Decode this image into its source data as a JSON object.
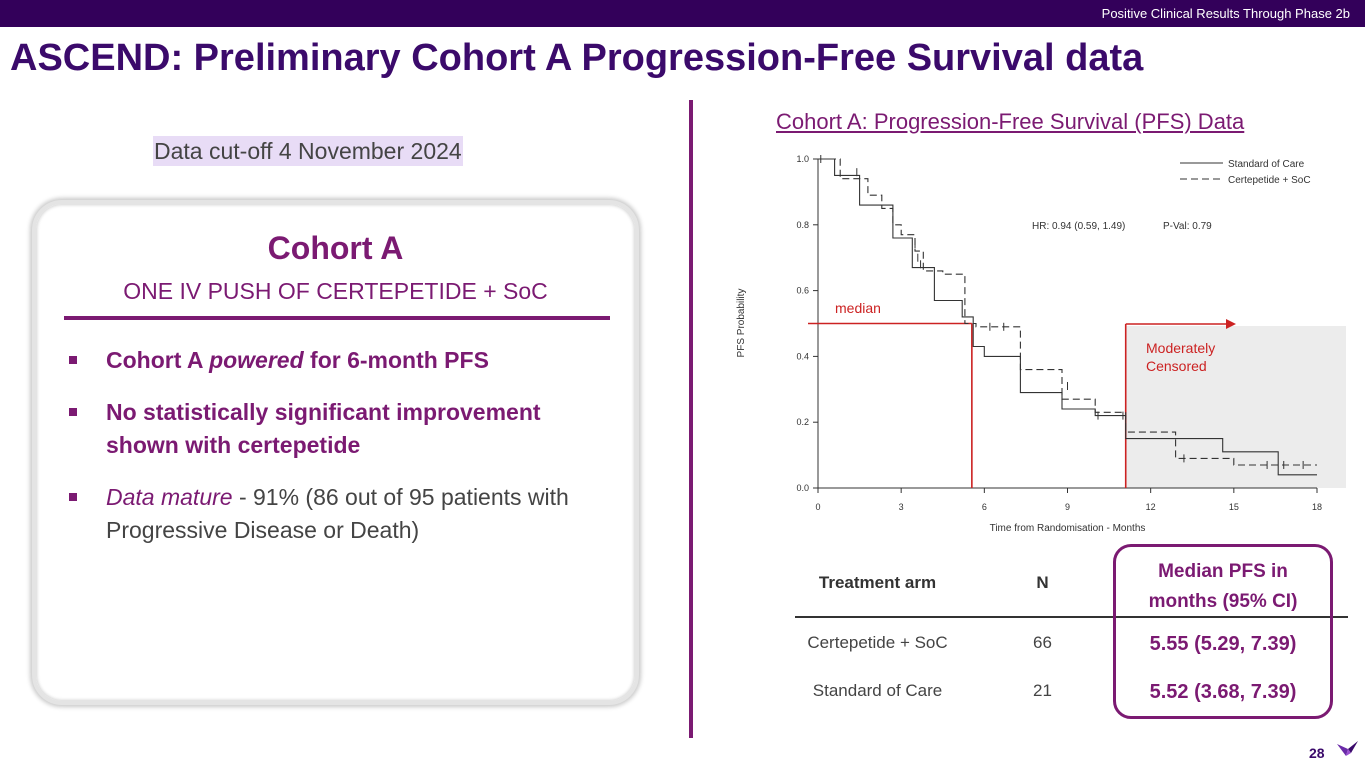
{
  "header": {
    "section": "Positive Clinical Results Through Phase 2b"
  },
  "title": "ASCEND: Preliminary Cohort A Progression-Free Survival data",
  "cutoff": "Data cut-off 4 November 2024",
  "card": {
    "title": "Cohort A",
    "subtitle": "ONE IV PUSH OF CERTEPETIDE + SoC",
    "bullets": [
      {
        "a": "Cohort A ",
        "b": "powered",
        "c": " for 6-month PFS"
      },
      {
        "a": "No statistically significant improvement shown with certepetide"
      },
      {
        "a": "Data mature",
        "b": " - 91% (86 out of 95 patients with Progressive Disease or Death)"
      }
    ]
  },
  "chart_title": "Cohort A: Progression-Free Survival (PFS) Data",
  "chart_data": {
    "type": "line",
    "xlabel": "Time from Randomisation - Months",
    "ylabel": "PFS Probability",
    "xlim": [
      0,
      18
    ],
    "ylim": [
      0,
      1
    ],
    "xticks": [
      0,
      3,
      6,
      9,
      12,
      15,
      18
    ],
    "yticks": [
      "0.0",
      "0.2",
      "0.4",
      "0.6",
      "0.8",
      "1.0"
    ],
    "legend_position": "top-right",
    "annotation_hr": "HR: 0.94 (0.59, 1.49)",
    "annotation_p": "P-Val: 0.79",
    "median_label": "median",
    "censor_label": [
      "Moderately",
      "Censored"
    ],
    "median_y": 0.5,
    "median_x": 5.55,
    "censor_start_x": 11.1,
    "series": [
      {
        "name": "Standard of Care",
        "style": "solid",
        "points": [
          [
            0,
            1.0
          ],
          [
            0.6,
            1.0
          ],
          [
            0.6,
            0.95
          ],
          [
            1.5,
            0.95
          ],
          [
            1.5,
            0.86
          ],
          [
            2.7,
            0.86
          ],
          [
            2.7,
            0.76
          ],
          [
            3.4,
            0.76
          ],
          [
            3.4,
            0.67
          ],
          [
            4.2,
            0.67
          ],
          [
            4.2,
            0.57
          ],
          [
            5.2,
            0.57
          ],
          [
            5.2,
            0.52
          ],
          [
            5.6,
            0.52
          ],
          [
            5.6,
            0.43
          ],
          [
            6.0,
            0.43
          ],
          [
            6.0,
            0.4
          ],
          [
            7.3,
            0.4
          ],
          [
            7.3,
            0.29
          ],
          [
            8.8,
            0.29
          ],
          [
            8.8,
            0.24
          ],
          [
            10.0,
            0.24
          ],
          [
            10.0,
            0.22
          ],
          [
            11.1,
            0.22
          ],
          [
            11.1,
            0.15
          ],
          [
            14.6,
            0.15
          ],
          [
            14.6,
            0.11
          ],
          [
            16.6,
            0.11
          ],
          [
            16.6,
            0.04
          ],
          [
            18.0,
            0.04
          ]
        ]
      },
      {
        "name": "Certepetide + SoC",
        "style": "dashed",
        "points": [
          [
            0,
            1.0
          ],
          [
            0.8,
            1.0
          ],
          [
            0.8,
            0.94
          ],
          [
            1.8,
            0.94
          ],
          [
            1.8,
            0.89
          ],
          [
            2.3,
            0.89
          ],
          [
            2.3,
            0.85
          ],
          [
            2.7,
            0.85
          ],
          [
            2.7,
            0.8
          ],
          [
            3.0,
            0.8
          ],
          [
            3.0,
            0.77
          ],
          [
            3.5,
            0.77
          ],
          [
            3.5,
            0.72
          ],
          [
            3.8,
            0.72
          ],
          [
            3.8,
            0.66
          ],
          [
            4.5,
            0.66
          ],
          [
            4.5,
            0.65
          ],
          [
            5.3,
            0.65
          ],
          [
            5.3,
            0.5
          ],
          [
            5.7,
            0.5
          ],
          [
            5.7,
            0.49
          ],
          [
            7.3,
            0.49
          ],
          [
            7.3,
            0.36
          ],
          [
            8.8,
            0.36
          ],
          [
            8.8,
            0.27
          ],
          [
            10.0,
            0.27
          ],
          [
            10.0,
            0.23
          ],
          [
            11.1,
            0.23
          ],
          [
            11.1,
            0.17
          ],
          [
            12.9,
            0.17
          ],
          [
            12.9,
            0.09
          ],
          [
            15.0,
            0.09
          ],
          [
            15.0,
            0.07
          ],
          [
            18.0,
            0.07
          ]
        ]
      }
    ],
    "censors": {
      "solid": [
        [
          0.1,
          1.0
        ],
        [
          3.5,
          0.74
        ],
        [
          6.2,
          0.49
        ],
        [
          10.1,
          0.22
        ],
        [
          16.8,
          0.07
        ]
      ],
      "dashed": [
        [
          1.4,
          0.96
        ],
        [
          3.6,
          0.7
        ],
        [
          3.7,
          0.68
        ],
        [
          6.7,
          0.49
        ],
        [
          9.0,
          0.31
        ],
        [
          11.0,
          0.22
        ],
        [
          13.2,
          0.09
        ],
        [
          16.2,
          0.07
        ],
        [
          17.5,
          0.07
        ]
      ]
    }
  },
  "table": {
    "headers": {
      "arm": "Treatment arm",
      "n": "N",
      "median_line1": "Median PFS in",
      "median_line2": "months (95% CI)"
    },
    "rows": [
      {
        "arm": "Certepetide + SoC",
        "n": "66",
        "median": "5.55 (5.29, 7.39)"
      },
      {
        "arm": "Standard of Care",
        "n": "21",
        "median": "5.52 (3.68, 7.39)"
      }
    ]
  },
  "page_number": "28",
  "colors": {
    "brand_dark": "#33005a",
    "accent": "#7b1a72",
    "annotation_red": "#cc2222"
  }
}
